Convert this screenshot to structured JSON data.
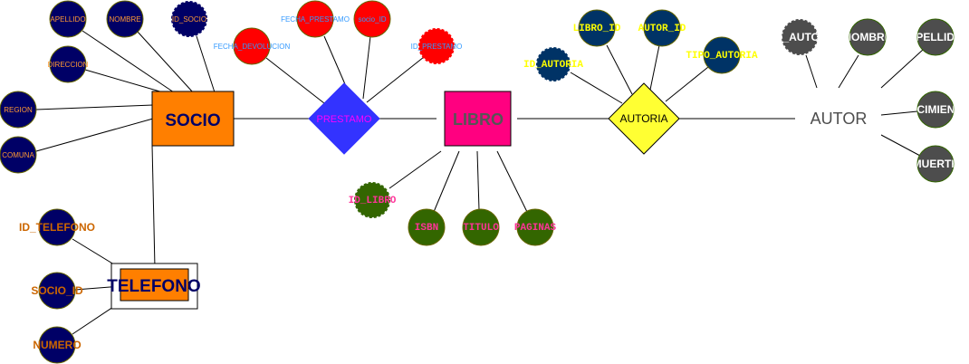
{
  "colors": {
    "socio_entity": "#FF7F00",
    "telefono_entity": "#FF7F00",
    "libro_entity": "#FF0080",
    "autor_entity": "#FFFFFF",
    "prestamo_rel": "#3333FF",
    "autoria_rel": "#FFFF33",
    "navy_attr": "#000066",
    "red_attr": "#FF0000",
    "green_attr": "#336600",
    "teal_attr": "#003366",
    "gray_attr": "#4D4D4D",
    "orange_text": "#CC6600",
    "blue_text": "#3399FF",
    "yellow_text": "#FFFF00",
    "pink_text": "#FF3399"
  },
  "entities": {
    "socio": "SOCIO",
    "libro": "LIBRO",
    "telefono": "TELEFONO",
    "autor": "AUTOR"
  },
  "relations": {
    "prestamo": "PRESTAMO",
    "autoria": "AUTORIA"
  },
  "socio_attrs": {
    "apellido": "APELLIDO",
    "nombre": "NOMBRE",
    "id_socio": "ID_SOCIO",
    "direccion": "DIRECCION",
    "region": "REGION",
    "comuna": "COMUNA"
  },
  "prestamo_attrs": {
    "fecha_prestamo": "FECHA_PRESTAMO",
    "socio_id": "socio_ID",
    "fecha_devolucion": "FECHA_DEVOLUCION",
    "id_prestamo": "ID_PRESTAMO"
  },
  "libro_attrs": {
    "id_libro": "ID_LIBRO",
    "isbn": "ISBN",
    "titulo": "TITULO",
    "paginas": "PAGINAS"
  },
  "autoria_attrs": {
    "libro_id": "LIBRO_ID",
    "autor_id": "AUTOR_ID",
    "id_autoria": "ID_AUTORIA",
    "tipo_autoria": "TIPO_AUTORIA"
  },
  "autor_attrs": {
    "id_autor": "ID_AUTOR",
    "nombre": "NOMBRE",
    "apellido": "APELLIDO",
    "nacimiento": "NACIMIENTO",
    "muerte": "MUERTE"
  },
  "telefono_attrs": {
    "id_telefono": "ID_TELEFONO",
    "socio_id": "SOCIO_ID",
    "numero": "NUMERO"
  }
}
